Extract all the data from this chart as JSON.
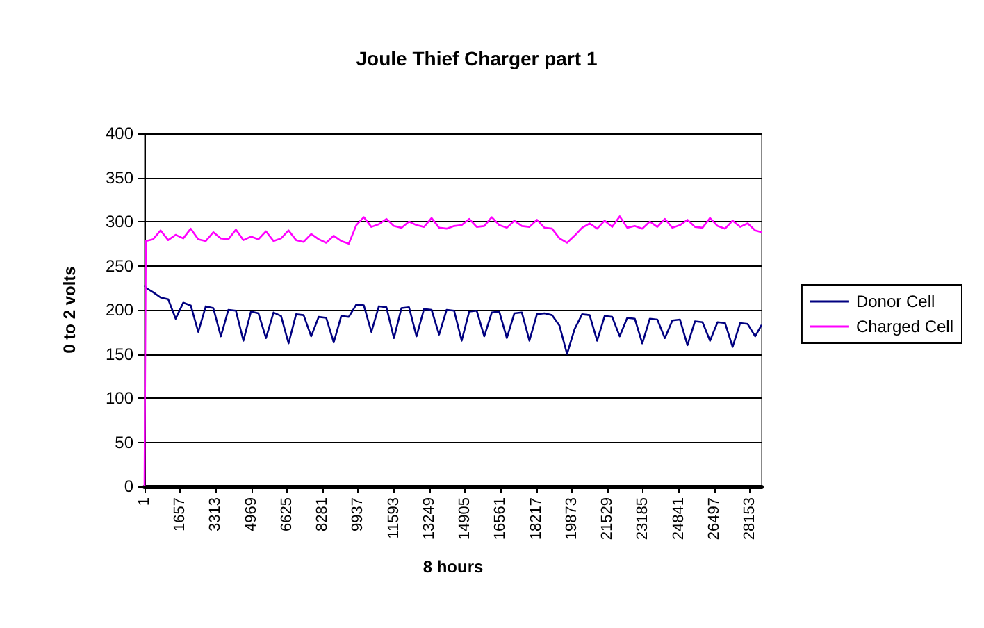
{
  "chart_data": {
    "type": "line",
    "title": "Joule Thief Charger part 1",
    "xlabel": "8 hours",
    "ylabel": "0 to 2 volts",
    "x": [
      1,
      60,
      400,
      750,
      1100,
      1450,
      1800,
      2150,
      2500,
      2850,
      3200,
      3550,
      3900,
      4250,
      4600,
      4950,
      5300,
      5650,
      6000,
      6350,
      6700,
      7050,
      7400,
      7750,
      8100,
      8450,
      8800,
      9150,
      9500,
      9850,
      10200,
      10550,
      10900,
      11250,
      11600,
      11950,
      12300,
      12650,
      13000,
      13350,
      13700,
      14050,
      14400,
      14750,
      15100,
      15450,
      15800,
      16150,
      16500,
      16850,
      17200,
      17550,
      17900,
      18250,
      18600,
      18950,
      19300,
      19650,
      20000,
      20350,
      20700,
      21050,
      21400,
      21750,
      22100,
      22450,
      22800,
      23150,
      23500,
      23850,
      24200,
      24550,
      24900,
      25250,
      25600,
      25950,
      26300,
      26650,
      27000,
      27350,
      27700,
      28050,
      28400,
      28700
    ],
    "series": [
      {
        "name": "Donor Cell",
        "color": "#000080",
        "values": [
          228,
          225,
          220,
          214,
          212,
          190,
          208,
          205,
          175,
          204,
          202,
          170,
          200,
          199,
          165,
          198,
          196,
          168,
          197,
          193,
          162,
          195,
          194,
          170,
          192,
          191,
          163,
          193,
          192,
          206,
          205,
          175,
          204,
          203,
          168,
          202,
          203,
          170,
          201,
          200,
          172,
          200,
          199,
          165,
          198,
          199,
          170,
          197,
          198,
          168,
          196,
          197,
          165,
          195,
          196,
          194,
          182,
          150,
          178,
          195,
          194,
          165,
          193,
          192,
          170,
          191,
          190,
          162,
          190,
          189,
          168,
          188,
          189,
          160,
          187,
          186,
          165,
          186,
          185,
          158,
          185,
          184,
          170,
          183
        ]
      },
      {
        "name": "Charged Cell",
        "color": "#ff00ff",
        "values": [
          0,
          278,
          280,
          290,
          279,
          285,
          281,
          292,
          280,
          278,
          288,
          281,
          280,
          291,
          279,
          283,
          280,
          289,
          278,
          281,
          290,
          279,
          277,
          286,
          280,
          276,
          284,
          278,
          275,
          296,
          305,
          294,
          297,
          303,
          295,
          293,
          300,
          296,
          294,
          304,
          293,
          292,
          295,
          296,
          303,
          294,
          295,
          305,
          296,
          293,
          301,
          295,
          294,
          302,
          293,
          292,
          281,
          276,
          284,
          293,
          298,
          292,
          301,
          294,
          306,
          293,
          295,
          292,
          300,
          294,
          303,
          293,
          296,
          302,
          294,
          293,
          304,
          295,
          292,
          301,
          294,
          298,
          290,
          288
        ]
      }
    ],
    "xlim": [
      1,
      28700
    ],
    "xticks": [
      1,
      1657,
      3313,
      4969,
      6625,
      8281,
      9937,
      11593,
      13249,
      14905,
      16561,
      18217,
      19873,
      21529,
      23185,
      24841,
      26497,
      28153
    ],
    "ylim": [
      0,
      400
    ],
    "yticks": [
      0,
      50,
      100,
      150,
      200,
      250,
      300,
      350,
      400
    ],
    "grid": "y",
    "legend": "right",
    "marker": "none",
    "line_style": "solid"
  }
}
